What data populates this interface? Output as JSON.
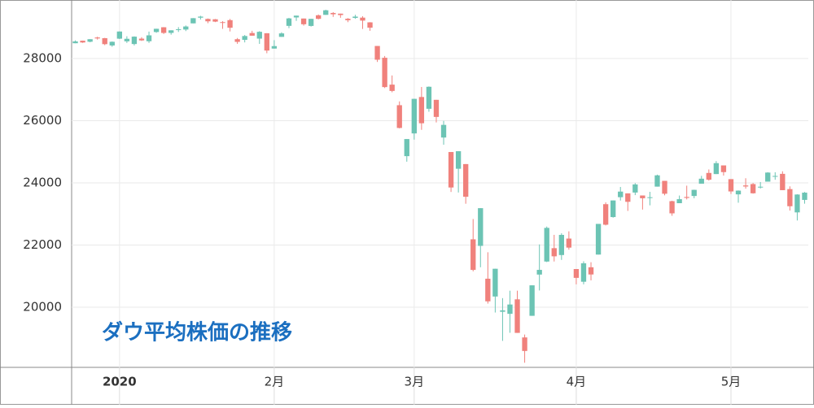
{
  "chart_data": {
    "type": "candlestick",
    "title": "ダウ平均株価の推移",
    "categories": [
      null,
      null,
      null,
      null,
      null,
      null,
      "2020",
      null,
      null,
      null,
      null,
      null,
      null,
      null,
      null,
      null,
      null,
      null,
      null,
      null,
      null,
      null,
      null,
      null,
      null,
      null,
      null,
      "2月",
      null,
      null,
      null,
      null,
      null,
      null,
      null,
      null,
      null,
      null,
      null,
      null,
      null,
      null,
      null,
      null,
      null,
      null,
      "3月",
      null,
      null,
      null,
      null,
      null,
      null,
      null,
      null,
      null,
      null,
      null,
      null,
      null,
      null,
      null,
      null,
      null,
      null,
      null,
      null,
      null,
      "4月",
      null,
      null,
      null,
      null,
      null,
      null,
      null,
      null,
      null,
      null,
      null,
      null,
      null,
      null,
      null,
      null,
      null,
      null,
      null,
      null,
      "5月",
      null,
      null,
      null,
      null,
      null,
      null,
      null,
      null,
      null,
      null
    ],
    "open": [
      28491,
      28573,
      28539,
      28676,
      28654,
      28419,
      28638,
      28553,
      28466,
      28639,
      28556,
      28852,
      29005,
      28824,
      28917,
      28932,
      29131,
      29313,
      29273,
      29262,
      29170,
      29234,
      28621,
      28600,
      28820,
      28640,
      28813,
      28319,
      28696,
      29050,
      29321,
      29286,
      29048,
      29391,
      29404,
      29465,
      29443,
      29279,
      29306,
      29315,
      29163,
      28403,
      28024,
      27160,
      26498,
      24859,
      25590,
      26762,
      26383,
      26671,
      25458,
      24992,
      24454,
      24604,
      22184,
      21973,
      20917,
      20344,
      19853,
      19787,
      20253,
      19028,
      19723,
      21050,
      21469,
      21899,
      21678,
      22208,
      21228,
      20819,
      21285,
      21693,
      23314,
      22900,
      23539,
      23662,
      23689,
      23594,
      23530,
      23879,
      24064,
      23411,
      23346,
      23546,
      23578,
      23973,
      24319,
      24283,
      24561,
      24120,
      23630,
      23917,
      23961,
      23869,
      24039,
      24210,
      24290,
      23800,
      23050,
      23452
    ],
    "high": [
      28582,
      28576,
      28621,
      28701,
      28664,
      28548,
      28873,
      28716,
      28712,
      28685,
      28866,
      28958,
      29010,
      28907,
      29009,
      29063,
      29300,
      29374,
      29288,
      29271,
      29201,
      29273,
      28660,
      28756,
      28891,
      28879,
      28814,
      28591,
      28844,
      29308,
      29380,
      29286,
      29276,
      29415,
      29568,
      29491,
      29443,
      29301,
      29406,
      29360,
      29169,
      28403,
      28081,
      27455,
      26620,
      25409,
      26706,
      27084,
      27102,
      26671,
      25994,
      24992,
      25020,
      24604,
      22837,
      23186,
      21768,
      21237,
      20292,
      20531,
      20531,
      19121,
      20705,
      22020,
      22595,
      22328,
      22378,
      22441,
      21228,
      21477,
      21447,
      22680,
      23372,
      23434,
      23868,
      23662,
      23990,
      23594,
      23711,
      24264,
      24064,
      23425,
      23592,
      23910,
      23780,
      24225,
      24431,
      24700,
      24561,
      24120,
      23757,
      24149,
      23995,
      24027,
      24343,
      24341,
      24372,
      23888,
      23632,
      23706
    ],
    "low": [
      28491,
      28503,
      28523,
      28608,
      28429,
      28377,
      28627,
      28501,
      28420,
      28565,
      28502,
      28827,
      28790,
      28767,
      28854,
      28882,
      29131,
      29253,
      29136,
      29171,
      28954,
      28870,
      28472,
      28518,
      28735,
      28470,
      28170,
      28319,
      28696,
      28976,
      29210,
      29057,
      29028,
      29259,
      29404,
      29339,
      29310,
      29169,
      29277,
      28950,
      28892,
      27889,
      27050,
      26914,
      25753,
      24681,
      25391,
      25706,
      26287,
      25943,
      25226,
      23707,
      23690,
      23328,
      21154,
      21285,
      20116,
      19829,
      18917,
      19177,
      19174,
      18214,
      19723,
      20538,
      21452,
      21470,
      21522,
      21851,
      20736,
      20736,
      20863,
      21693,
      22631,
      22880,
      23431,
      23097,
      23606,
      23140,
      23277,
      23879,
      23599,
      22941,
      23346,
      23467,
      23504,
      23973,
      24073,
      24283,
      24234,
      23643,
      23361,
      23813,
      23653,
      23818,
      24039,
      24100,
      23764,
      23108,
      22790,
      23330
    ],
    "close": [
      28551,
      28515,
      28621,
      28645,
      28462,
      28538,
      28868,
      28634,
      28703,
      28583,
      28745,
      28956,
      28823,
      28907,
      28940,
      29030,
      29297,
      29348,
      29196,
      29186,
      29160,
      28990,
      28535,
      28723,
      28734,
      28859,
      28256,
      28399,
      28808,
      29290,
      29379,
      29102,
      29276,
      29276,
      29551,
      29423,
      29398,
      29232,
      29348,
      29219,
      28992,
      27961,
      27081,
      26957,
      25766,
      25409,
      26703,
      25917,
      27091,
      26121,
      25865,
      23851,
      25018,
      23553,
      21200,
      23186,
      20189,
      21237,
      19899,
      20087,
      19174,
      18592,
      20704,
      21201,
      22552,
      21637,
      22327,
      21917,
      20944,
      21413,
      21053,
      22680,
      22654,
      23434,
      23719,
      23390,
      23950,
      23505,
      23538,
      24242,
      23650,
      23019,
      23475,
      23516,
      23775,
      24134,
      24101,
      24634,
      24346,
      23724,
      23750,
      23883,
      23665,
      23876,
      24331,
      24222,
      23765,
      23248,
      23625,
      23685
    ],
    "up_color": "#6cc4b4",
    "down_color": "#f0817c",
    "ylim": [
      18065,
      29882
    ],
    "yticks": [
      20000,
      22000,
      24000,
      26000,
      28000
    ],
    "grid": true
  }
}
